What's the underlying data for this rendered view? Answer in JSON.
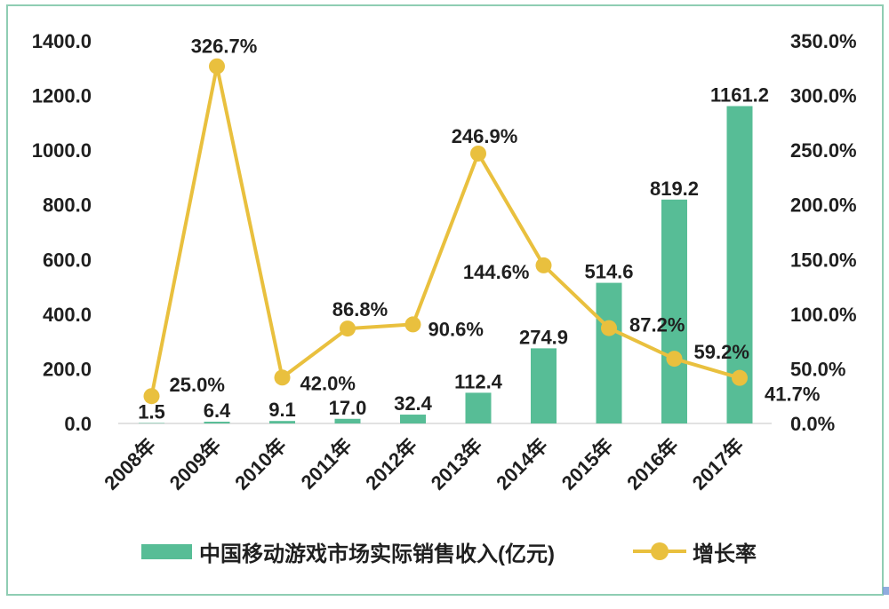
{
  "chart_data": {
    "type": "bar",
    "subtype": "bar-line-combo",
    "categories": [
      "2008年",
      "2009年",
      "2010年",
      "2011年",
      "2012年",
      "2013年",
      "2014年",
      "2015年",
      "2016年",
      "2017年"
    ],
    "series": [
      {
        "name": "中国移动游戏市场实际销售收入(亿元)",
        "type": "bar",
        "axis": "left",
        "values": [
          1.5,
          6.4,
          9.1,
          17.0,
          32.4,
          112.4,
          274.9,
          514.6,
          819.2,
          1161.2
        ],
        "labels": [
          "1.5",
          "6.4",
          "9.1",
          "17.0",
          "32.4",
          "112.4",
          "274.9",
          "514.6",
          "819.2",
          "1161.2"
        ]
      },
      {
        "name": "增长率",
        "type": "line",
        "axis": "right",
        "values": [
          25.0,
          326.7,
          42.0,
          86.8,
          90.6,
          246.9,
          144.6,
          87.2,
          59.2,
          41.7
        ],
        "labels": [
          "25.0%",
          "326.7%",
          "42.0%",
          "86.8%",
          "90.6%",
          "246.9%",
          "144.6%",
          "87.2%",
          "59.2%",
          "41.7%"
        ]
      }
    ],
    "left_axis": {
      "min": 0,
      "max": 1400,
      "step": 200,
      "tick_labels": [
        "0.0",
        "200.0",
        "400.0",
        "600.0",
        "800.0",
        "1000.0",
        "1200.0",
        "1400.0"
      ]
    },
    "right_axis": {
      "min": 0,
      "max": 350,
      "step": 50,
      "tick_labels": [
        "0.0%",
        "50.0%",
        "100.0%",
        "150.0%",
        "200.0%",
        "250.0%",
        "300.0%",
        "350.0%"
      ]
    },
    "title": "",
    "xlabel": "",
    "ylabel": "",
    "grid": false,
    "legend_position": "bottom",
    "colors": {
      "bar": "#57BD96",
      "line": "#E9C03E",
      "axis_line": "#D9D9D9",
      "text": "#1F1F1F",
      "frame_border": "#8FCDB3"
    }
  }
}
